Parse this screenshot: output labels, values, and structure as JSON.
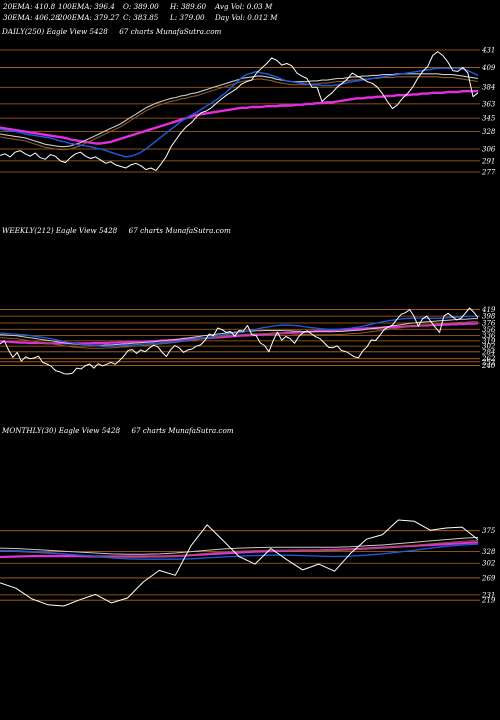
{
  "header": {
    "row1": [
      "20EMA: 410.8",
      "100EMA: 396.4",
      "O: 389.00",
      "H: 389.60",
      "Avg Vol: 0.03 M"
    ],
    "row2": [
      "30EMA: 406.28",
      "200EMA: 379.27",
      "C: 383.85",
      "L: 379.00",
      "Day Vol: 0.012 M"
    ]
  },
  "colors": {
    "background": "#000000",
    "price": "#ffffff",
    "level": "#b86a1e",
    "ema_short": "#1f5be0",
    "ema_long": "#e22ee0",
    "ema_mid": "#c9c9c9",
    "ema_brown": "#8a5a2a"
  },
  "chart_data": [
    {
      "type": "line",
      "title": "DAILY(250) Eagle  View  5428",
      "watermark": "67 charts MunafaSutra.com",
      "y_levels": [
        431,
        409,
        384,
        363,
        345,
        328,
        306,
        291,
        277
      ],
      "price": [
        298,
        300,
        296,
        302,
        304,
        300,
        297,
        301,
        295,
        293,
        299,
        297,
        291,
        289,
        295,
        300,
        302,
        297,
        294,
        296,
        292,
        288,
        290,
        286,
        284,
        282,
        286,
        288,
        285,
        280,
        282,
        279,
        287,
        296,
        309,
        318,
        327,
        334,
        339,
        346,
        352,
        354,
        358,
        364,
        369,
        374,
        378,
        382,
        388,
        391,
        393,
        402,
        408,
        414,
        421,
        418,
        412,
        414,
        411,
        402,
        398,
        395,
        384,
        384,
        366,
        372,
        377,
        384,
        389,
        394,
        402,
        398,
        395,
        391,
        389,
        384,
        376,
        366,
        357,
        362,
        370,
        376,
        384,
        395,
        404,
        410,
        424,
        429,
        424,
        416,
        405,
        404,
        409,
        402,
        372,
        377
      ],
      "ema_fast": [
        331,
        330,
        329,
        328,
        327,
        325,
        324,
        323,
        322,
        321,
        320,
        318,
        316,
        315,
        313,
        312,
        311,
        310,
        309,
        307,
        306,
        304,
        302,
        300,
        298,
        296,
        297,
        299,
        302,
        306,
        311,
        316,
        321,
        326,
        331,
        336,
        341,
        345,
        349,
        352,
        356,
        360,
        364,
        368,
        373,
        378,
        384,
        390,
        396,
        400,
        402,
        404,
        402,
        401,
        399,
        397,
        394,
        392,
        391,
        390,
        389,
        388,
        387,
        387,
        386,
        386,
        386,
        387,
        388,
        390,
        391,
        392,
        393,
        394,
        395,
        396,
        397,
        398,
        399,
        400,
        401,
        402,
        403,
        404,
        405,
        406,
        407,
        408,
        408,
        408,
        408,
        408,
        407,
        405,
        402,
        399
      ],
      "ema_magenta": [
        333,
        332,
        331,
        330,
        329,
        328,
        327,
        326,
        325,
        324,
        323,
        322,
        321,
        320,
        318,
        317,
        316,
        315,
        314,
        313,
        313,
        314,
        315,
        317,
        319,
        321,
        323,
        325,
        327,
        329,
        331,
        333,
        335,
        337,
        339,
        341,
        343,
        345,
        347,
        349,
        350,
        351,
        352,
        353,
        354,
        355,
        356,
        357,
        358,
        358,
        359,
        359,
        359,
        360,
        360,
        360,
        361,
        361,
        361,
        362,
        362,
        363,
        363,
        364,
        364,
        365,
        365,
        366,
        367,
        368,
        369,
        370,
        370,
        371,
        371,
        372,
        372,
        373,
        373,
        374,
        374,
        374,
        375,
        375,
        376,
        376,
        377,
        377,
        377,
        378,
        378,
        378,
        379,
        379,
        379,
        379
      ],
      "ema_white": [
        325,
        324,
        323,
        322,
        321,
        320,
        318,
        316,
        314,
        312,
        311,
        310,
        309,
        309,
        310,
        312,
        314,
        317,
        320,
        323,
        326,
        329,
        332,
        335,
        338,
        342,
        346,
        350,
        354,
        358,
        361,
        364,
        366,
        368,
        370,
        371,
        373,
        374,
        376,
        377,
        379,
        381,
        383,
        385,
        387,
        389,
        391,
        393,
        395,
        396,
        397,
        398,
        398,
        397,
        396,
        394,
        393,
        392,
        391,
        391,
        391,
        391,
        392,
        392,
        393,
        393,
        394,
        395,
        395,
        396,
        397,
        397,
        398,
        398,
        399,
        399,
        400,
        400,
        400,
        401,
        401,
        401,
        401,
        401,
        401,
        401,
        401,
        401,
        400,
        400,
        400,
        399,
        398,
        397,
        396,
        395
      ]
    },
    {
      "type": "line",
      "title": "WEEKLY(212) Eagle  View  5428",
      "watermark": "67 charts MunafaSutra.com",
      "y_levels": [
        419,
        398,
        376,
        356,
        336,
        319,
        302,
        284,
        262,
        252,
        240
      ],
      "price": [
        309,
        319,
        290,
        266,
        282,
        254,
        268,
        262,
        264,
        270,
        250,
        245,
        238,
        224,
        220,
        214,
        213,
        216,
        232,
        229,
        240,
        245,
        232,
        246,
        239,
        244,
        250,
        244,
        256,
        270,
        288,
        291,
        279,
        290,
        284,
        296,
        305,
        300,
        282,
        269,
        291,
        304,
        296,
        282,
        290,
        293,
        302,
        306,
        320,
        341,
        335,
        360,
        355,
        346,
        349,
        334,
        352,
        350,
        368,
        339,
        336,
        312,
        304,
        284,
        319,
        347,
        321,
        333,
        326,
        311,
        333,
        345,
        351,
        341,
        332,
        326,
        312,
        298,
        297,
        303,
        288,
        285,
        277,
        268,
        265,
        287,
        300,
        322,
        320,
        336,
        355,
        363,
        370,
        388,
        404,
        409,
        419,
        397,
        366,
        389,
        398,
        380,
        362,
        346,
        398,
        407,
        396,
        386,
        391,
        407,
        424,
        411,
        393
      ],
      "ema_blue": [
        344,
        343,
        342,
        341,
        340,
        339,
        338,
        336,
        334,
        332,
        330,
        328,
        326,
        323,
        320,
        317,
        314,
        312,
        310,
        308,
        306,
        305,
        304,
        303,
        302,
        302,
        302,
        302,
        303,
        304,
        305,
        306,
        307,
        308,
        309,
        310,
        311,
        312,
        313,
        314,
        315,
        316,
        317,
        319,
        321,
        323,
        325,
        327,
        329,
        331,
        333,
        335,
        337,
        339,
        341,
        343,
        345,
        347,
        350,
        353,
        356,
        359,
        362,
        364,
        366,
        368,
        369,
        369,
        369,
        368,
        367,
        365,
        363,
        361,
        360,
        358,
        357,
        356,
        356,
        356,
        357,
        358,
        359,
        361,
        363,
        366,
        369,
        372,
        375,
        378,
        381,
        383,
        385,
        387,
        389,
        390,
        391,
        392,
        392,
        392,
        391,
        391,
        391,
        391,
        392,
        393,
        394,
        395,
        396,
        397,
        398,
        398,
        398
      ],
      "ema_magenta": [
        318,
        317,
        316,
        315,
        314,
        313,
        313,
        312,
        312,
        312,
        312,
        311,
        311,
        311,
        311,
        311,
        311,
        311,
        311,
        311,
        311,
        311,
        312,
        312,
        312,
        312,
        313,
        313,
        314,
        314,
        315,
        315,
        316,
        316,
        317,
        318,
        318,
        319,
        320,
        320,
        321,
        322,
        323,
        323,
        324,
        325,
        326,
        327,
        327,
        328,
        329,
        330,
        331,
        332,
        333,
        334,
        335,
        336,
        336,
        337,
        338,
        339,
        340,
        341,
        342,
        342,
        343,
        344,
        345,
        346,
        347,
        347,
        348,
        349,
        350,
        351,
        351,
        352,
        353,
        354,
        355,
        355,
        356,
        357,
        357,
        358,
        359,
        359,
        360,
        361,
        362,
        362,
        363,
        364,
        364,
        365,
        366,
        366,
        367,
        368,
        368,
        369,
        369,
        370,
        371,
        371,
        372,
        372,
        373,
        373,
        374,
        374,
        375
      ],
      "ema_white": [
        339,
        338,
        337,
        336,
        335,
        333,
        331,
        329,
        327,
        325,
        323,
        321,
        319,
        317,
        315,
        313,
        311,
        309,
        308,
        307,
        306,
        305,
        305,
        305,
        305,
        306,
        306,
        307,
        308,
        309,
        310,
        311,
        312,
        313,
        314,
        315,
        316,
        318,
        319,
        320,
        322,
        323,
        325,
        327,
        328,
        330,
        332,
        334,
        336,
        337,
        339,
        341,
        342,
        344,
        345,
        347,
        348,
        349,
        350,
        350,
        351,
        351,
        352,
        352,
        352,
        352,
        352,
        351,
        351,
        350,
        350,
        349,
        349,
        348,
        348,
        348,
        348,
        348,
        348,
        349,
        349,
        350,
        351,
        352,
        353,
        354,
        356,
        358,
        359,
        361,
        363,
        365,
        367,
        369,
        371,
        373,
        375,
        376,
        378,
        379,
        380,
        381,
        382,
        383,
        384,
        385,
        386,
        387,
        388,
        388,
        389,
        390,
        390
      ]
    },
    {
      "type": "line",
      "title": "MONTHLY(30) Eagle  View  5428",
      "watermark": "67 charts MunafaSutra.com",
      "y_levels": [
        375,
        328,
        302,
        269,
        231,
        219
      ],
      "price": [
        258,
        246,
        222,
        209,
        206,
        220,
        232,
        213,
        224,
        260,
        286,
        275,
        342,
        388,
        353,
        317,
        300,
        335,
        310,
        287,
        300,
        284,
        324,
        356,
        366,
        399,
        396,
        376,
        381,
        383,
        355
      ],
      "ema_blue": [
        330,
        330,
        328,
        326,
        323,
        320,
        317,
        314,
        312,
        311,
        311,
        311,
        312,
        314,
        316,
        318,
        319,
        320,
        320,
        319,
        318,
        317,
        318,
        320,
        323,
        327,
        331,
        336,
        340,
        343,
        345
      ],
      "ema_magenta": [
        316,
        317,
        318,
        318,
        318,
        318,
        317,
        317,
        317,
        317,
        317,
        318,
        320,
        322,
        324,
        326,
        328,
        329,
        330,
        331,
        331,
        332,
        333,
        335,
        337,
        339,
        341,
        343,
        345,
        347,
        349
      ],
      "ema_white": [
        336,
        335,
        333,
        331,
        329,
        327,
        325,
        323,
        322,
        322,
        323,
        325,
        328,
        331,
        334,
        336,
        337,
        338,
        338,
        338,
        338,
        338,
        339,
        341,
        343,
        346,
        349,
        352,
        355,
        358,
        360
      ]
    }
  ]
}
